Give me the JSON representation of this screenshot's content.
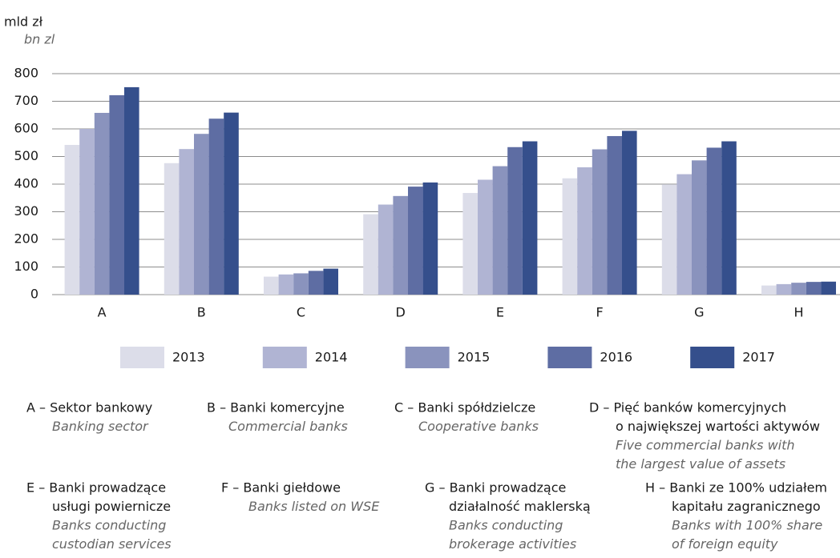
{
  "chart_data": {
    "type": "bar",
    "y_label": "mld zł",
    "y_label_en": "bn zl",
    "categories": [
      "A",
      "B",
      "C",
      "D",
      "E",
      "F",
      "G",
      "H"
    ],
    "series": [
      {
        "name": "2013",
        "color": "#dcdde9",
        "values": [
          542,
          476,
          65,
          291,
          368,
          421,
          399,
          33
        ]
      },
      {
        "name": "2014",
        "color": "#b0b4d3",
        "values": [
          600,
          527,
          73,
          326,
          416,
          461,
          436,
          38
        ]
      },
      {
        "name": "2015",
        "color": "#8a93bd",
        "values": [
          658,
          582,
          77,
          357,
          465,
          526,
          486,
          43
        ]
      },
      {
        "name": "2016",
        "color": "#5e6da3",
        "values": [
          722,
          637,
          86,
          391,
          534,
          574,
          532,
          46
        ]
      },
      {
        "name": "2017",
        "color": "#354f8c",
        "values": [
          751,
          659,
          94,
          406,
          555,
          593,
          555,
          47
        ]
      }
    ],
    "ylim": [
      0,
      800
    ],
    "yticks": [
      0,
      100,
      200,
      300,
      400,
      500,
      600,
      700,
      800
    ],
    "grid": true,
    "notes": [
      {
        "lines": [
          "A – Sektor bankowy"
        ],
        "italic": [
          "Banking sector"
        ]
      },
      {
        "lines": [
          "B – Banki komercyjne"
        ],
        "italic": [
          "Commercial banks"
        ]
      },
      {
        "lines": [
          "C – Banki spółdzielcze"
        ],
        "italic": [
          "Cooperative banks"
        ]
      },
      {
        "lines": [
          "D – Pięć banków komercyjnych",
          "o największej wartości aktywów"
        ],
        "italic": [
          "Five commercial banks with",
          "the largest value of assets"
        ]
      },
      {
        "lines": [
          "E – Banki prowadzące",
          "usługi powiernicze"
        ],
        "italic": [
          "Banks conducting",
          "custodian services"
        ]
      },
      {
        "lines": [
          "F – Banki giełdowe"
        ],
        "italic": [
          "Banks listed on WSE"
        ]
      },
      {
        "lines": [
          "G – Banki prowadzące",
          "działalność maklerską"
        ],
        "italic": [
          "Banks conducting",
          "brokerage activities"
        ]
      },
      {
        "lines": [
          "H – Banki ze 100% udziałem",
          "kapitału zagranicznego"
        ],
        "italic": [
          "Banks with 100% share",
          "of foreign equity"
        ]
      }
    ]
  }
}
